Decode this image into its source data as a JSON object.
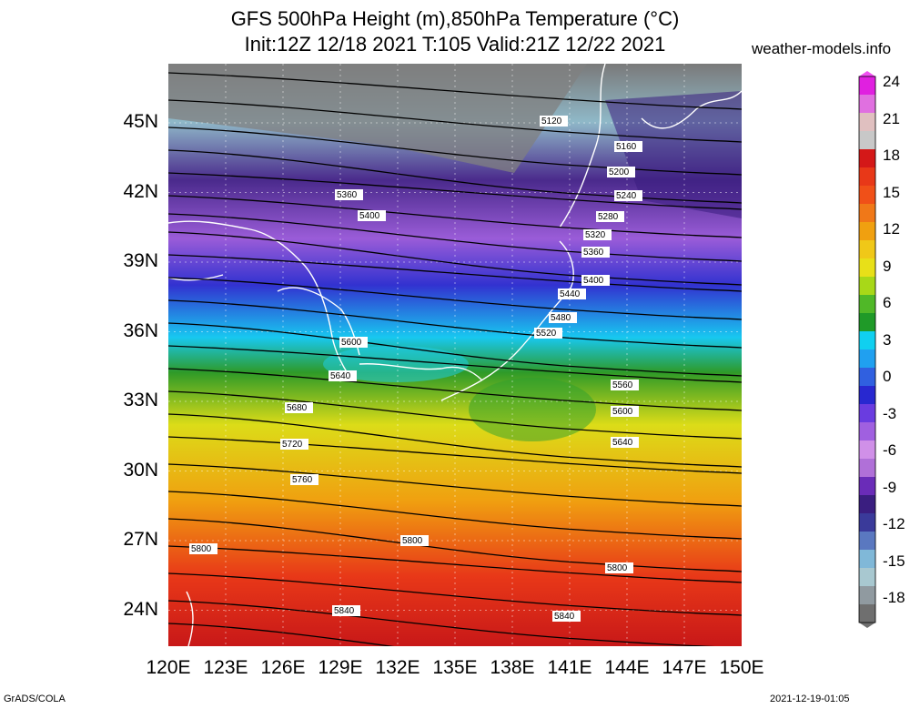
{
  "header": {
    "title_line1": "GFS 500hPa Height (m),850hPa Temperature (°C)",
    "title_line2": "Init:12Z 12/18 2021 T:105 Valid:21Z 12/22 2021",
    "site": "weather-models.info"
  },
  "axes": {
    "lat_labels": [
      "45N",
      "42N",
      "39N",
      "36N",
      "33N",
      "30N",
      "27N",
      "24N"
    ],
    "lon_labels": [
      "120E",
      "123E",
      "126E",
      "129E",
      "132E",
      "135E",
      "138E",
      "141E",
      "144E",
      "147E",
      "150E"
    ]
  },
  "colorbar": {
    "labels": [
      "24",
      "21",
      "18",
      "15",
      "12",
      "9",
      "6",
      "3",
      "0",
      "-3",
      "-6",
      "-9",
      "-12",
      "-15",
      "-18"
    ]
  },
  "contours": {
    "labels": [
      "5120",
      "5160",
      "5200",
      "5240",
      "5280",
      "5320",
      "5360",
      "5360",
      "5400",
      "5400",
      "5440",
      "5480",
      "5520",
      "5560",
      "5600",
      "5600",
      "5640",
      "5640",
      "5680",
      "5720",
      "5760",
      "5800",
      "5800",
      "5800",
      "5840",
      "5840"
    ]
  },
  "footer": {
    "left": "GrADS/COLA",
    "right": "2021-12-19-01:05"
  }
}
